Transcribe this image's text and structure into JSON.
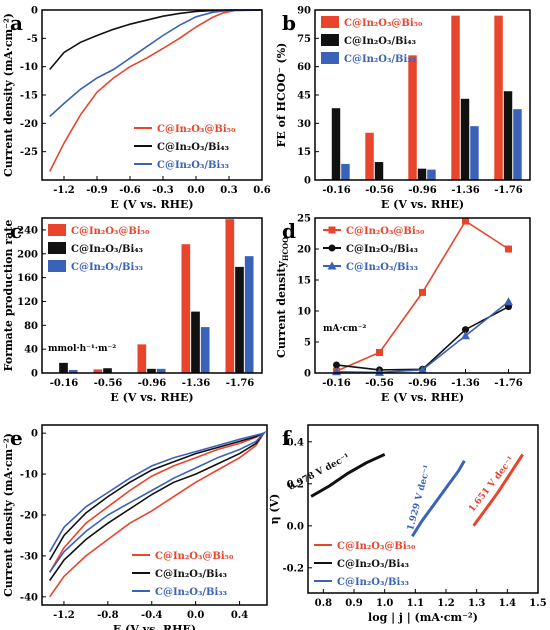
{
  "colors": {
    "red": "#e8452c",
    "black": "#111111",
    "blue": "#3a62b8"
  },
  "chart_data": [
    {
      "panel_label": "a",
      "type": "line",
      "xlabel": "E (V vs. RHE)",
      "ylabel": "Current density (mA·cm⁻²)",
      "xlim": [
        -1.4,
        0.6
      ],
      "ylim": [
        -30,
        0
      ],
      "xticks": [
        "-1.2",
        "-0.9",
        "-0.6",
        "-0.3",
        "0.0",
        "0.3",
        "0.6"
      ],
      "yticks": [
        "0",
        "-5",
        "-10",
        "-15",
        "-20",
        "-25"
      ],
      "legend_position": "bottom-right",
      "series": [
        {
          "name": "C@In₂O₃@Bi₅₀",
          "color": "#e8452c",
          "x": [
            -1.33,
            -1.2,
            -1.05,
            -0.9,
            -0.75,
            -0.6,
            -0.45,
            -0.3,
            -0.15,
            0.0,
            0.15,
            0.25,
            0.35,
            0.6
          ],
          "y": [
            -28.5,
            -23.5,
            -18.5,
            -14.5,
            -12,
            -10,
            -8.5,
            -6.8,
            -5,
            -3,
            -1.3,
            -0.5,
            -0.1,
            0
          ]
        },
        {
          "name": "C@In₂O₃/Bi₄₃",
          "color": "#111111",
          "x": [
            -1.33,
            -1.2,
            -1.05,
            -0.9,
            -0.75,
            -0.6,
            -0.45,
            -0.3,
            -0.15,
            0.0,
            0.15,
            0.3,
            0.6
          ],
          "y": [
            -10.5,
            -7.5,
            -5.7,
            -4.5,
            -3.4,
            -2.5,
            -1.8,
            -1.1,
            -0.6,
            -0.25,
            -0.1,
            0,
            0
          ]
        },
        {
          "name": "C@In₂O₃/Bi₃₃",
          "color": "#3a62b8",
          "x": [
            -1.33,
            -1.2,
            -1.05,
            -0.9,
            -0.75,
            -0.6,
            -0.45,
            -0.3,
            -0.15,
            0.0,
            0.15,
            0.3,
            0.6
          ],
          "y": [
            -18.8,
            -16.5,
            -14,
            -12,
            -10.5,
            -8.5,
            -6.5,
            -4.5,
            -2.7,
            -1.2,
            -0.4,
            -0.05,
            0
          ]
        }
      ]
    },
    {
      "panel_label": "b",
      "type": "bar",
      "xlabel": "E (V vs. RHE)",
      "ylabel": "FE of HCOO⁻ (%)",
      "categories": [
        "-0.16",
        "-0.56",
        "-0.96",
        "-1.36",
        "-1.76"
      ],
      "ylim": [
        0,
        90
      ],
      "yticks": [
        "0",
        "15",
        "30",
        "45",
        "60",
        "75",
        "90"
      ],
      "legend_position": "top-left",
      "series": [
        {
          "name": "C@In₂O₃@Bi₅₀",
          "color": "#e8452c",
          "values": [
            0.5,
            25,
            66,
            87,
            87
          ]
        },
        {
          "name": "C@In₂O₃/Bi₄₃",
          "color": "#111111",
          "values": [
            38,
            9.5,
            6,
            43,
            47
          ]
        },
        {
          "name": "C@In₂O₃/Bi₃₃",
          "color": "#3a62b8",
          "values": [
            8.5,
            0,
            5.5,
            28.5,
            37.5
          ]
        }
      ]
    },
    {
      "panel_label": "c",
      "type": "bar",
      "xlabel": "E (V vs. RHE)",
      "ylabel": "Formate production rate",
      "unit_note": "mmol·h⁻¹·m⁻²",
      "categories": [
        "-0.16",
        "-0.56",
        "-0.96",
        "-1.36",
        "-1.76"
      ],
      "ylim": [
        0,
        260
      ],
      "yticks": [
        "0",
        "40",
        "80",
        "120",
        "160",
        "200",
        "240"
      ],
      "legend_position": "top-left",
      "series": [
        {
          "name": "C@In₂O₃@Bi₅₀",
          "color": "#e8452c",
          "values": [
            0.5,
            6,
            48,
            216,
            258
          ]
        },
        {
          "name": "C@In₂O₃/Bi₄₃",
          "color": "#111111",
          "values": [
            17,
            8,
            7,
            103,
            178
          ]
        },
        {
          "name": "C@In₂O₃/Bi₃₃",
          "color": "#3a62b8",
          "values": [
            5,
            0,
            7,
            77,
            196
          ]
        }
      ]
    },
    {
      "panel_label": "d",
      "type": "line",
      "xlabel": "E (V vs. RHE)",
      "ylabel": "Current densityHCOO⁻",
      "ylabel_main": "Current density",
      "ylabel_sub": "HCOO⁻",
      "unit_note": "mA·cm⁻²",
      "categories": [
        "-0.16",
        "-0.56",
        "-0.96",
        "-1.36",
        "-1.76"
      ],
      "ylim": [
        0,
        25
      ],
      "yticks": [
        "0",
        "5",
        "10",
        "15",
        "20",
        "25"
      ],
      "legend_position": "top-left",
      "series": [
        {
          "name": "C@In₂O₃@Bi₅₀",
          "color": "#e8452c",
          "marker": "square",
          "values": [
            0.3,
            3.3,
            13,
            24.5,
            20
          ]
        },
        {
          "name": "C@In₂O₃/Bi₄₃",
          "color": "#111111",
          "marker": "circle",
          "values": [
            1.3,
            0.5,
            0.6,
            7,
            10.7
          ]
        },
        {
          "name": "C@In₂O₃/Bi₃₃",
          "color": "#3a62b8",
          "marker": "triangle",
          "values": [
            0.2,
            0.1,
            0.5,
            6,
            11.5
          ]
        }
      ]
    },
    {
      "panel_label": "e",
      "type": "line",
      "xlabel": "E (V vs. RHE)",
      "ylabel": "Current density (mA·cm⁻²)",
      "xlim": [
        -1.4,
        0.65
      ],
      "ylim": [
        -42,
        2
      ],
      "xticks": [
        "-1.2",
        "-0.8",
        "-0.4",
        "0.0",
        "0.4"
      ],
      "yticks": [
        "0",
        "-10",
        "-20",
        "-30",
        "-40"
      ],
      "legend_position": "bottom-right",
      "series": [
        {
          "name": "C@In₂O₃@Bi₅₀",
          "color": "#e8452c",
          "x": [
            -1.33,
            -1.2,
            -1.0,
            -0.8,
            -0.6,
            -0.4,
            -0.2,
            0.0,
            0.2,
            0.4,
            0.55,
            0.62,
            0.62,
            0.55,
            0.4,
            0.2,
            0.0,
            -0.2,
            -0.4,
            -0.6,
            -0.8,
            -1.0,
            -1.2,
            -1.33
          ],
          "y": [
            -40,
            -35,
            -30,
            -26,
            -22,
            -19,
            -15.5,
            -12,
            -9,
            -6,
            -3,
            0,
            0,
            -1,
            -2.5,
            -4,
            -6,
            -8,
            -10.5,
            -14,
            -18,
            -22,
            -28,
            -34
          ]
        },
        {
          "name": "C@In₂O₃/Bi₄₃",
          "color": "#111111",
          "x": [
            -1.33,
            -1.2,
            -1.0,
            -0.8,
            -0.6,
            -0.4,
            -0.2,
            0.0,
            0.2,
            0.4,
            0.55,
            0.62,
            0.62,
            0.55,
            0.4,
            0.2,
            0.0,
            -0.2,
            -0.4,
            -0.6,
            -0.8,
            -1.0,
            -1.2,
            -1.33
          ],
          "y": [
            -36,
            -31,
            -26,
            -22,
            -18.5,
            -15,
            -12,
            -10,
            -7.5,
            -5,
            -2.5,
            0,
            0,
            -0.8,
            -2,
            -3.5,
            -5,
            -7,
            -9,
            -12,
            -15.5,
            -19.5,
            -25,
            -31
          ]
        },
        {
          "name": "C@In₂O₃/Bi₃₃",
          "color": "#3a62b8",
          "x": [
            -1.33,
            -1.2,
            -1.0,
            -0.8,
            -0.6,
            -0.4,
            -0.2,
            0.0,
            0.2,
            0.4,
            0.55,
            0.62,
            0.62,
            0.55,
            0.4,
            0.2,
            0.0,
            -0.2,
            -0.4,
            -0.6,
            -0.8,
            -1.0,
            -1.2,
            -1.33
          ],
          "y": [
            -34,
            -29,
            -24,
            -20,
            -17,
            -14,
            -11,
            -8.5,
            -6,
            -4,
            -2,
            0,
            0,
            -0.5,
            -1.5,
            -3,
            -4.5,
            -6,
            -8,
            -11,
            -14.5,
            -18,
            -23,
            -29
          ]
        }
      ]
    },
    {
      "panel_label": "f",
      "type": "line",
      "xlabel": "log | j | (mA·cm⁻²)",
      "ylabel": "η (V)",
      "xlim": [
        0.75,
        1.5
      ],
      "ylim": [
        -0.32,
        0.48
      ],
      "xticks": [
        "0.8",
        "0.9",
        "1.0",
        "1.1",
        "1.2",
        "1.3",
        "1.4",
        "1.5"
      ],
      "yticks": [
        "0.4",
        "0.2",
        "0.0",
        "-0.2"
      ],
      "legend_position": "bottom-left",
      "annotations": [
        "0.978 V dec⁻¹",
        "1.929 V dec⁻¹",
        "1.651 V dec⁻¹"
      ],
      "series": [
        {
          "name": "C@In₂O₃@Bi₅₀",
          "color": "#e8452c",
          "x": [
            1.29,
            1.33,
            1.37,
            1.41,
            1.45
          ],
          "y": [
            0.0,
            0.08,
            0.16,
            0.25,
            0.34
          ]
        },
        {
          "name": "C@In₂O₃/Bi₄₃",
          "color": "#111111",
          "x": [
            0.76,
            0.82,
            0.88,
            0.94,
            1.0
          ],
          "y": [
            0.14,
            0.19,
            0.25,
            0.3,
            0.34
          ]
        },
        {
          "name": "C@In₂O₃/Bi₃₃",
          "color": "#3a62b8",
          "x": [
            1.09,
            1.12,
            1.15,
            1.18,
            1.21,
            1.24,
            1.26
          ],
          "y": [
            -0.05,
            0.02,
            0.08,
            0.14,
            0.2,
            0.26,
            0.31
          ]
        }
      ]
    }
  ]
}
